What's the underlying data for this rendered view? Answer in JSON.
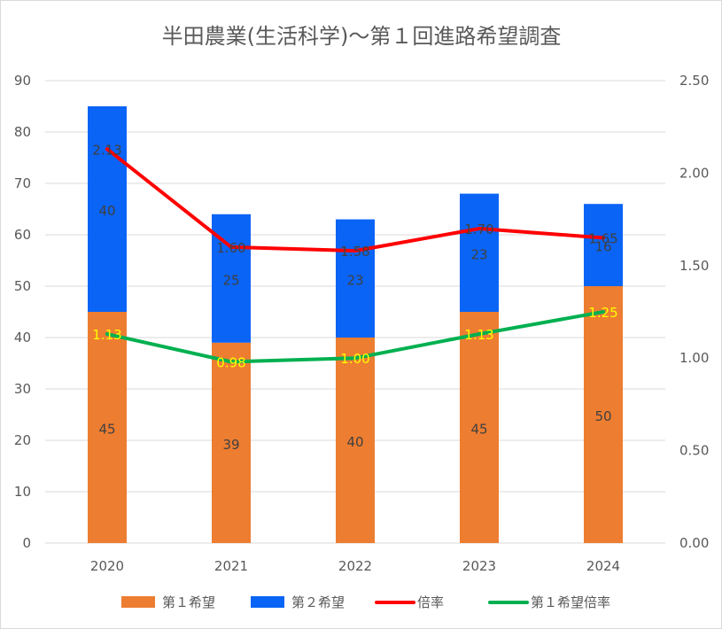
{
  "chart_data": {
    "type": "bar",
    "title": "半田農業(生活科学)～第１回進路希望調査",
    "categories": [
      "2020",
      "2021",
      "2022",
      "2023",
      "2024"
    ],
    "series": [
      {
        "name": "第１希望",
        "kind": "bar",
        "axis": "left",
        "color": "#ed7d31",
        "values": [
          45,
          39,
          40,
          45,
          50
        ]
      },
      {
        "name": "第２希望",
        "kind": "bar",
        "axis": "left",
        "color": "#0a64f5",
        "values": [
          40,
          25,
          23,
          23,
          16
        ]
      },
      {
        "name": "倍率",
        "kind": "line",
        "axis": "right",
        "color": "#ff0000",
        "values": [
          2.13,
          1.6,
          1.58,
          1.7,
          1.65
        ],
        "labels": [
          "2.13",
          "1.60",
          "1.58",
          "1.70",
          "1.65"
        ]
      },
      {
        "name": "第１希望倍率",
        "kind": "line",
        "axis": "right",
        "color": "#00b050",
        "values": [
          1.13,
          0.98,
          1.0,
          1.13,
          1.25
        ],
        "labels": [
          "1.13",
          "0.98",
          "1.00",
          "1.13",
          "1.25"
        ]
      }
    ],
    "y_left": {
      "min": 0,
      "max": 90,
      "step": 10,
      "ticks": [
        "0",
        "10",
        "20",
        "30",
        "40",
        "50",
        "60",
        "70",
        "80",
        "90"
      ]
    },
    "y_right": {
      "min": 0,
      "max": 2.5,
      "step": 0.5,
      "ticks": [
        "0.00",
        "0.50",
        "1.00",
        "1.50",
        "2.00",
        "2.50"
      ]
    },
    "grid": true,
    "legend_position": "bottom"
  }
}
